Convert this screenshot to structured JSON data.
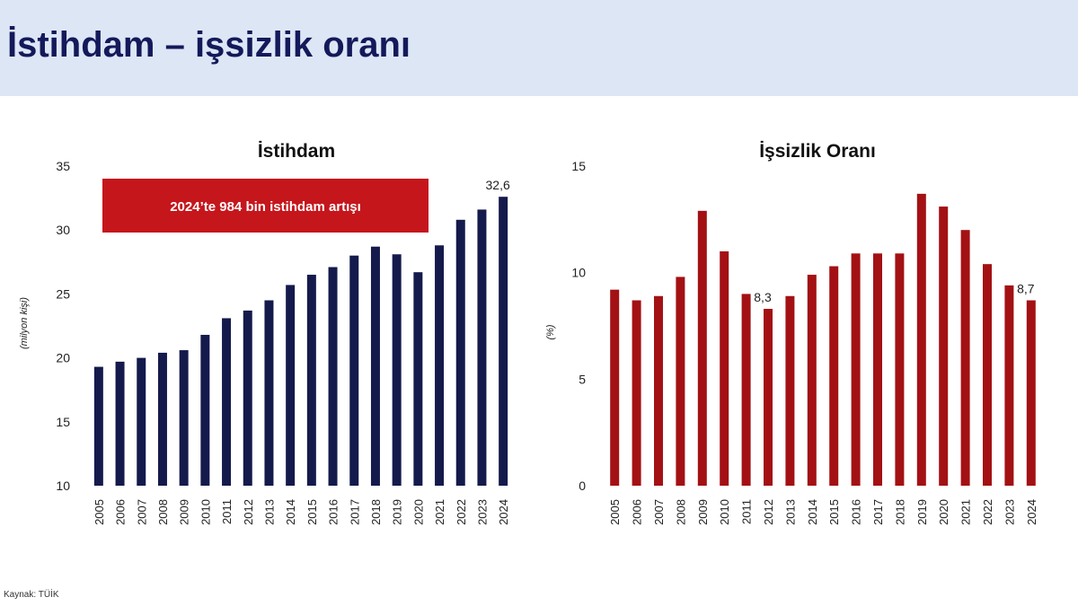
{
  "page": {
    "title": "İstihdam – işsizlik oranı",
    "source": "Kaynak: TÜİK"
  },
  "colors": {
    "header_bg": "#dde6f5",
    "title_text": "#14195a",
    "employment_bar": "#141a4b",
    "unemployment_bar": "#a31114",
    "callout_bg": "#c5161c"
  },
  "chart_data": [
    {
      "type": "bar",
      "title": "İstihdam",
      "ylabel": "(milyon kişi)",
      "xlabel": "",
      "ylim": [
        10,
        35
      ],
      "yticks": [
        10,
        15,
        20,
        25,
        30,
        35
      ],
      "grid": false,
      "categories": [
        "2005",
        "2006",
        "2007",
        "2008",
        "2009",
        "2010",
        "2011",
        "2012",
        "2013",
        "2014",
        "2015",
        "2016",
        "2017",
        "2018",
        "2019",
        "2020",
        "2021",
        "2022",
        "2023",
        "2024"
      ],
      "values": [
        19.3,
        19.7,
        20.0,
        20.4,
        20.6,
        21.8,
        23.1,
        23.7,
        24.5,
        25.7,
        26.5,
        27.1,
        28.0,
        28.7,
        28.1,
        26.7,
        28.8,
        30.8,
        31.6,
        32.6
      ],
      "data_labels": [
        {
          "category": "2024",
          "text": "32,6"
        }
      ],
      "callout": "2024’te 984 bin istihdam artışı"
    },
    {
      "type": "bar",
      "title": "İşsizlik Oranı",
      "ylabel": "(%)",
      "xlabel": "",
      "ylim": [
        0,
        15
      ],
      "yticks": [
        0,
        5,
        10,
        15
      ],
      "grid": false,
      "categories": [
        "2005",
        "2006",
        "2007",
        "2008",
        "2009",
        "2010",
        "2011",
        "2012",
        "2013",
        "2014",
        "2015",
        "2016",
        "2017",
        "2018",
        "2019",
        "2020",
        "2021",
        "2022",
        "2023",
        "2024"
      ],
      "values": [
        9.2,
        8.7,
        8.9,
        9.8,
        12.9,
        11.0,
        9.0,
        8.3,
        8.9,
        9.9,
        10.3,
        10.9,
        10.9,
        10.9,
        13.7,
        13.1,
        12.0,
        10.4,
        9.4,
        8.7
      ],
      "data_labels": [
        {
          "category": "2012",
          "text": "8,3"
        },
        {
          "category": "2024",
          "text": "8,7"
        }
      ]
    }
  ]
}
